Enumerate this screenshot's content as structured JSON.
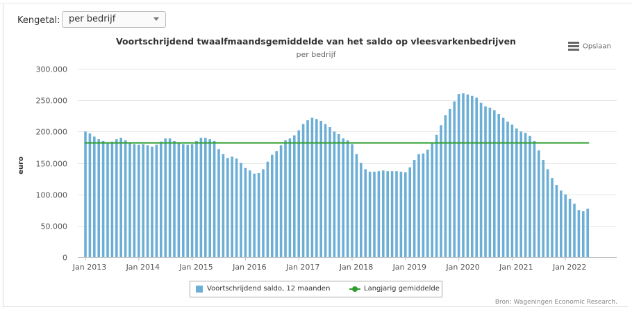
{
  "controls": {
    "kengetal_label": "Kengetal:",
    "kengetal_value": "per bedrijf"
  },
  "export_label": "Opslaan",
  "source_text": "Bron: Wageningen Economic Research.",
  "colors": {
    "bar": "#6baed6",
    "line": "#2e9e2e",
    "grid": "#e6e6e6"
  },
  "chart_data": {
    "type": "bar",
    "title": "Voortschrijdend twaalfmaandsgemiddelde van het saldo op vleesvarkenbedrijven",
    "subtitle": "per bedrijf",
    "ylabel": "euro",
    "xlabel": "",
    "ylim": [
      0,
      300000
    ],
    "y_ticks": [
      0,
      50000,
      100000,
      150000,
      200000,
      250000,
      300000
    ],
    "y_tick_labels": [
      "0",
      "50.000",
      "100.000",
      "150.000",
      "200.000",
      "250.000",
      "300.000"
    ],
    "x_start": "Jan 2013",
    "x_tick_labels": [
      "Jan 2013",
      "Jan 2014",
      "Jan 2015",
      "Jan 2016",
      "Jan 2017",
      "Jan 2018",
      "Jan 2019",
      "Jan 2020",
      "Jan 2021",
      "Jan 2022"
    ],
    "grid": true,
    "legend_position": "bottom-center",
    "series": [
      {
        "name": "Voortschrijdend saldo, 12 maanden",
        "type": "bar",
        "values": [
          200000,
          197000,
          192000,
          188000,
          185000,
          182000,
          184000,
          188000,
          190000,
          186000,
          182000,
          180000,
          179000,
          180000,
          178000,
          176000,
          179000,
          184000,
          189000,
          189000,
          185000,
          182000,
          180000,
          179000,
          180000,
          185000,
          190000,
          190000,
          188000,
          185000,
          172000,
          164000,
          158000,
          160000,
          157000,
          150000,
          142000,
          138000,
          133000,
          134000,
          140000,
          152000,
          163000,
          169000,
          178000,
          186000,
          189000,
          194000,
          202000,
          212000,
          218000,
          222000,
          220000,
          217000,
          212000,
          207000,
          200000,
          196000,
          189000,
          186000,
          180000,
          164000,
          150000,
          140000,
          136000,
          136000,
          137000,
          138000,
          137000,
          137000,
          137000,
          136000,
          135000,
          143000,
          155000,
          164000,
          165000,
          171000,
          182000,
          195000,
          210000,
          226000,
          236000,
          248000,
          260000,
          261000,
          259000,
          257000,
          254000,
          246000,
          240000,
          238000,
          234000,
          228000,
          222000,
          216000,
          211000,
          205000,
          200000,
          198000,
          193000,
          185000,
          170000,
          155000,
          140000,
          126000,
          115000,
          106000,
          100000,
          93000,
          85000,
          75000,
          73000,
          77000
        ]
      },
      {
        "name": "Langjarig gemiddelde",
        "type": "line",
        "value": 182000
      }
    ]
  }
}
